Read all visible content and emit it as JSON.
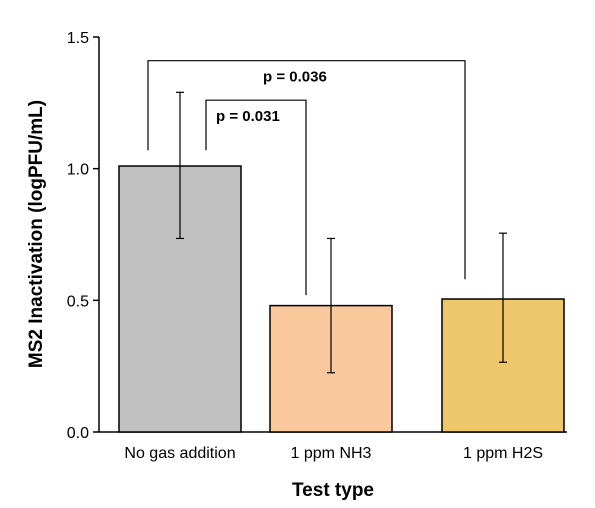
{
  "chart_data": {
    "type": "bar",
    "title": "",
    "xlabel": "Test type",
    "ylabel": "MS2 Inactivation (logPFU/mL)",
    "ylim": [
      0,
      1.5
    ],
    "y_ticks": [
      "0.0",
      "0.5",
      "1.0",
      "1.5"
    ],
    "categories": [
      "No gas addition",
      "1 ppm NH3",
      "1 ppm H2S"
    ],
    "values": [
      1.01,
      0.48,
      0.505
    ],
    "error_low": [
      0.735,
      0.225,
      0.265
    ],
    "error_high": [
      1.29,
      0.735,
      0.755
    ],
    "bar_colors": [
      "#c0c0c0",
      "#f9c89c",
      "#edc769"
    ],
    "grid": false,
    "legend": "none",
    "significance": [
      {
        "from": 0,
        "to": 1,
        "label": "p = 0.031",
        "level": 1.26
      },
      {
        "from": 0,
        "to": 2,
        "label": "p = 0.036",
        "level": 1.41
      }
    ]
  }
}
